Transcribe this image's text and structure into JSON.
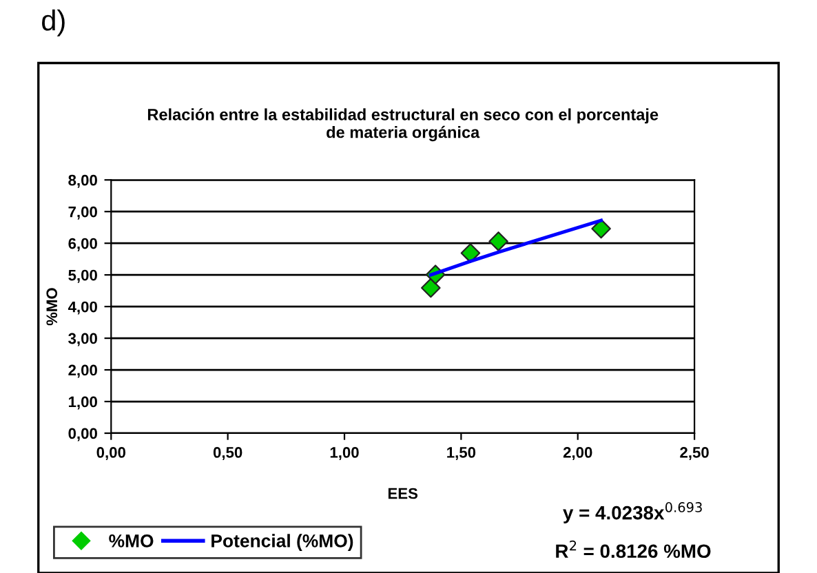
{
  "chart_data": {
    "type": "scatter",
    "title": "Relación entre la estabilidad estructural en seco con el porcentaje\nde materia orgánica",
    "xlabel": "EES",
    "ylabel": "%MO",
    "series": [
      {
        "name": "%MO",
        "color": "#00cc00",
        "marker": "diamond",
        "x": [
          1.37,
          1.39,
          1.54,
          1.66,
          2.1
        ],
        "values": [
          4.59,
          5.01,
          5.69,
          6.06,
          6.46
        ]
      },
      {
        "name": "Potencial (%MO)",
        "type": "line",
        "color": "#0000ff",
        "marker": "none",
        "x": [
          1.37,
          1.39,
          1.54,
          1.66,
          2.1
        ],
        "values": [
          5.0,
          5.05,
          5.43,
          5.72,
          6.72
        ]
      }
    ],
    "xlim": [
      0,
      2.5
    ],
    "xticks": [
      {
        "value": 0,
        "label": "0,00"
      },
      {
        "value": 0.5,
        "label": "0,50"
      },
      {
        "value": 1,
        "label": "1,00"
      },
      {
        "value": 1.5,
        "label": "1,50"
      },
      {
        "value": 2,
        "label": "2,00"
      },
      {
        "value": 2.5,
        "label": "2,50"
      }
    ],
    "ylim": [
      0,
      8
    ],
    "yticks": [
      {
        "value": 0,
        "label": "0,00"
      },
      {
        "value": 1,
        "label": "1,00"
      },
      {
        "value": 2,
        "label": "2,00"
      },
      {
        "value": 3,
        "label": "3,00"
      },
      {
        "value": 4,
        "label": "4,00"
      },
      {
        "value": 5,
        "label": "5,00"
      },
      {
        "value": 6,
        "label": "6,00"
      },
      {
        "value": 7,
        "label": "7,00"
      },
      {
        "value": 8,
        "label": "8,00"
      }
    ],
    "grid": "y",
    "legend": "bottom left",
    "annotations": [
      "d)",
      "y = 4.0238x$^{0.693}$",
      "R$^{2}$ = 0.8126 %MO"
    ]
  }
}
